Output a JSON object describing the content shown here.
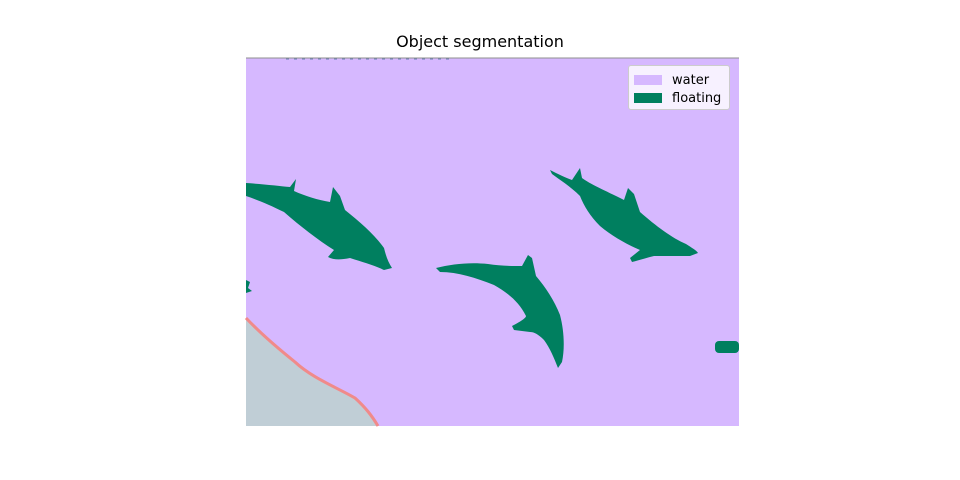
{
  "title": "Object segmentation",
  "legend": [
    {
      "label": "water",
      "color": "#d6b8ff"
    },
    {
      "label": "floating",
      "color": "#007f5f"
    }
  ],
  "colors": {
    "water": "#d6b8ff",
    "floating": "#007f5f",
    "land": "#c0ced6",
    "shore": "#f08a8a"
  }
}
